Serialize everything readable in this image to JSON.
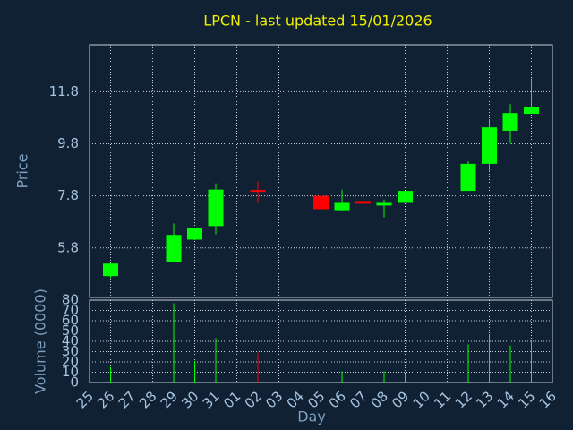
{
  "chart_data": {
    "type": "candlestick",
    "title": "LPCN - last updated 15/01/2026",
    "xlabel": "Day",
    "ylabel": "Price",
    "categories": [
      "25",
      "26",
      "27",
      "28",
      "29",
      "30",
      "31",
      "01",
      "02",
      "03",
      "04",
      "05",
      "06",
      "07",
      "08",
      "09",
      "10",
      "11",
      "12",
      "13",
      "14",
      "15",
      "16"
    ],
    "open": [
      null,
      4.72,
      null,
      null,
      5.27,
      6.12,
      6.64,
      null,
      7.99,
      null,
      null,
      7.8,
      7.25,
      7.6,
      7.43,
      7.53,
      null,
      null,
      7.99,
      9.03,
      10.3,
      10.95,
      null
    ],
    "high": [
      null,
      5.2,
      null,
      null,
      6.74,
      6.57,
      8.28,
      null,
      8.35,
      null,
      null,
      7.8,
      8.04,
      7.6,
      7.66,
      7.99,
      null,
      null,
      9.13,
      10.74,
      11.32,
      12.31,
      null
    ],
    "low": [
      null,
      4.65,
      null,
      null,
      5.27,
      6.1,
      6.33,
      null,
      7.53,
      null,
      null,
      6.91,
      7.22,
      7.48,
      6.98,
      7.53,
      null,
      null,
      7.99,
      8.72,
      9.8,
      10.95,
      null
    ],
    "close": [
      null,
      5.2,
      null,
      null,
      6.3,
      6.57,
      8.04,
      null,
      7.99,
      null,
      null,
      7.29,
      7.53,
      7.5,
      7.53,
      7.99,
      null,
      null,
      9.03,
      10.43,
      10.98,
      11.22,
      null
    ],
    "up_color": "#00ff00",
    "down_color": "#ff0000",
    "ylim": [
      3.9,
      13.6
    ],
    "yticks": [
      5.8,
      7.8,
      9.8,
      11.8
    ],
    "grid": true,
    "volume": {
      "ylabel": "Volume (0000)",
      "values": [
        null,
        15,
        null,
        null,
        77,
        21,
        43,
        null,
        29,
        null,
        null,
        21,
        11,
        8,
        11,
        8,
        null,
        null,
        37,
        47,
        36,
        41,
        null
      ],
      "ylim": [
        0,
        80
      ],
      "yticks": [
        0,
        10,
        20,
        30,
        40,
        50,
        60,
        70,
        80
      ]
    }
  }
}
